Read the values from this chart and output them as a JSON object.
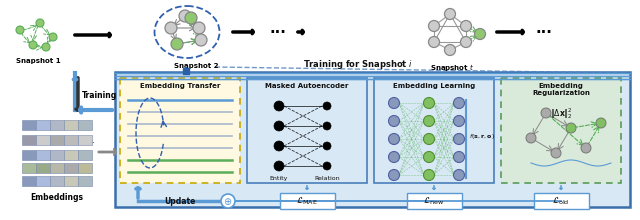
{
  "bg_color": "#ffffff",
  "main_box_facecolor": "#d9e8f5",
  "main_box_edge": "#3a6fac",
  "box_titles": [
    "Embedding Transfer",
    "Masked Autoencoder",
    "Embedding Learning",
    "Embedding\nRegularization"
  ],
  "box_colors": [
    "#fef9e0",
    "#d8e8f5",
    "#d8e8f5",
    "#daeada"
  ],
  "box_edge_colors": [
    "#c8a800",
    "#4a7fbc",
    "#4a7fbc",
    "#5a9a5a"
  ],
  "box_edge_styles": [
    "dashed",
    "solid",
    "solid",
    "dashed"
  ],
  "node_gray": "#b0b0b0",
  "node_green": "#80c060",
  "node_blue": "#5080c0",
  "edge_gray": "#888888",
  "edge_green": "#50a050",
  "arrow_black": "#111111",
  "blue_line": "#5b9bd5",
  "dark_blue": "#2a5fa5"
}
